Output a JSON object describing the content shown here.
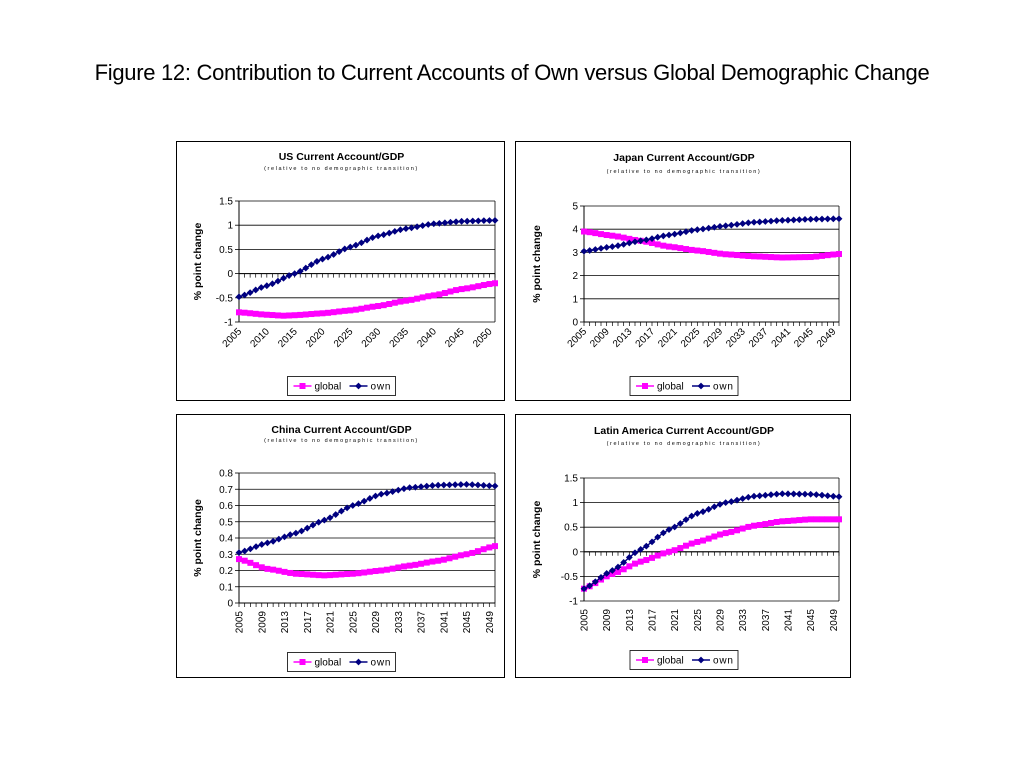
{
  "page": {
    "title": "Figure 12: Contribution to Current Accounts of Own versus Global Demographic Change"
  },
  "colors": {
    "global": "#ff00ff",
    "own": "#000080",
    "axis": "#000000",
    "grid": "#000000"
  },
  "chart_data": [
    {
      "type": "line",
      "title": "US Current Account/GDP",
      "subtitle": "(relative to no demographic transition)",
      "xlabel": "",
      "ylabel": "% point change",
      "ylim": [
        -1,
        1.5
      ],
      "yticks": [
        "1.5",
        "1",
        "0.5",
        "0",
        "-0.5",
        "-1"
      ],
      "ytick_values": [
        1.5,
        1,
        0.5,
        0,
        -0.5,
        -1
      ],
      "xticks": [
        "2005",
        "2010",
        "2015",
        "2020",
        "2025",
        "2030",
        "2035",
        "2040",
        "2045",
        "2050"
      ],
      "xtick_rotation": -45,
      "x_start": 2005,
      "x_end": 2051,
      "grid": true,
      "legend_position": "bottom",
      "series": [
        {
          "name": "global",
          "color": "#ff00ff",
          "marker": "square",
          "x": [
            2005,
            2010,
            2013,
            2015,
            2020,
            2025,
            2030,
            2035,
            2040,
            2045,
            2051
          ],
          "values": [
            -0.8,
            -0.85,
            -0.87,
            -0.86,
            -0.82,
            -0.76,
            -0.67,
            -0.56,
            -0.45,
            -0.32,
            -0.2
          ]
        },
        {
          "name": "own",
          "color": "#000080",
          "marker": "diamond",
          "x": [
            2005,
            2010,
            2015,
            2020,
            2025,
            2030,
            2035,
            2040,
            2045,
            2051
          ],
          "values": [
            -0.48,
            -0.25,
            0.0,
            0.3,
            0.55,
            0.78,
            0.93,
            1.03,
            1.08,
            1.1
          ]
        }
      ]
    },
    {
      "type": "line",
      "title": "Japan Current Account/GDP",
      "subtitle": "(relative to no demographic transition)",
      "xlabel": "",
      "ylabel": "% point change",
      "ylim": [
        0,
        5
      ],
      "yticks": [
        "5",
        "4",
        "3",
        "2",
        "1",
        "0"
      ],
      "ytick_values": [
        5,
        4,
        3,
        2,
        1,
        0
      ],
      "xticks": [
        "2005",
        "2009",
        "2013",
        "2017",
        "2021",
        "2025",
        "2029",
        "2033",
        "2037",
        "2041",
        "2045",
        "2049"
      ],
      "xtick_rotation": -45,
      "x_start": 2005,
      "x_end": 2050,
      "grid": true,
      "legend_position": "bottom",
      "series": [
        {
          "name": "global",
          "color": "#ff00ff",
          "marker": "square",
          "x": [
            2005,
            2010,
            2015,
            2020,
            2025,
            2030,
            2035,
            2040,
            2045,
            2050
          ],
          "values": [
            3.9,
            3.72,
            3.5,
            3.25,
            3.08,
            2.92,
            2.83,
            2.78,
            2.8,
            2.93
          ]
        },
        {
          "name": "own",
          "color": "#000080",
          "marker": "diamond",
          "x": [
            2005,
            2010,
            2015,
            2020,
            2025,
            2030,
            2035,
            2040,
            2045,
            2050
          ],
          "values": [
            3.05,
            3.25,
            3.5,
            3.75,
            3.98,
            4.15,
            4.3,
            4.38,
            4.43,
            4.45
          ]
        }
      ]
    },
    {
      "type": "line",
      "title": "China Current Account/GDP",
      "subtitle": "(relative to no demographic transition)",
      "xlabel": "",
      "ylabel": "% point change",
      "ylim": [
        0,
        0.8
      ],
      "yticks": [
        "0.8",
        "0.7",
        "0.6",
        "0.5",
        "0.4",
        "0.3",
        "0.2",
        "0.1",
        "0"
      ],
      "ytick_values": [
        0.8,
        0.7,
        0.6,
        0.5,
        0.4,
        0.3,
        0.2,
        0.1,
        0
      ],
      "xticks": [
        "2005",
        "2009",
        "2013",
        "2017",
        "2021",
        "2025",
        "2029",
        "2033",
        "2037",
        "2041",
        "2045",
        "2049"
      ],
      "xtick_rotation": -90,
      "x_start": 2005,
      "x_end": 2050,
      "grid": true,
      "legend_position": "bottom",
      "series": [
        {
          "name": "global",
          "color": "#ff00ff",
          "marker": "square",
          "x": [
            2005,
            2010,
            2015,
            2020,
            2025,
            2030,
            2035,
            2040,
            2045,
            2050
          ],
          "values": [
            0.27,
            0.21,
            0.18,
            0.17,
            0.18,
            0.2,
            0.23,
            0.26,
            0.3,
            0.35
          ]
        },
        {
          "name": "own",
          "color": "#000080",
          "marker": "diamond",
          "x": [
            2005,
            2010,
            2015,
            2020,
            2025,
            2030,
            2035,
            2040,
            2045,
            2050
          ],
          "values": [
            0.31,
            0.37,
            0.43,
            0.51,
            0.6,
            0.67,
            0.71,
            0.725,
            0.73,
            0.72
          ]
        }
      ]
    },
    {
      "type": "line",
      "title": "Latin America Current Account/GDP",
      "subtitle": "(relative to no demographic transition)",
      "xlabel": "",
      "ylabel": "% point change",
      "ylim": [
        -1,
        1.5
      ],
      "yticks": [
        "1.5",
        "1",
        "0.5",
        "0",
        "-0.5",
        "-1"
      ],
      "ytick_values": [
        1.5,
        1,
        0.5,
        0,
        -0.5,
        -1
      ],
      "xticks": [
        "2005",
        "2009",
        "2013",
        "2017",
        "2021",
        "2025",
        "2029",
        "2033",
        "2037",
        "2041",
        "2045",
        "2049"
      ],
      "xtick_rotation": -90,
      "x_start": 2005,
      "x_end": 2050,
      "grid": true,
      "legend_position": "bottom",
      "series": [
        {
          "name": "global",
          "color": "#ff00ff",
          "marker": "square",
          "x": [
            2005,
            2010,
            2015,
            2020,
            2025,
            2030,
            2035,
            2040,
            2045,
            2050
          ],
          "values": [
            -0.75,
            -0.45,
            -0.2,
            0.0,
            0.2,
            0.38,
            0.53,
            0.62,
            0.66,
            0.66
          ]
        },
        {
          "name": "own",
          "color": "#000080",
          "marker": "diamond",
          "x": [
            2005,
            2010,
            2015,
            2020,
            2025,
            2030,
            2035,
            2040,
            2045,
            2050
          ],
          "values": [
            -0.75,
            -0.38,
            0.05,
            0.45,
            0.78,
            1.0,
            1.13,
            1.18,
            1.17,
            1.12
          ]
        }
      ]
    }
  ]
}
